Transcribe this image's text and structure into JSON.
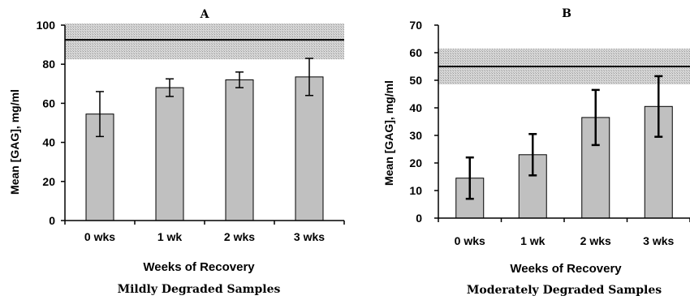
{
  "chart_data": [
    {
      "type": "bar",
      "title": "A",
      "caption": "Mildly Degraded Samples",
      "xlabel": "Weeks of Recovery",
      "ylabel": "Mean [GAG], mg/ml",
      "categories": [
        "0 wks",
        "1 wk",
        "2 wks",
        "3 wks"
      ],
      "values": [
        54.5,
        68,
        72,
        73.5
      ],
      "error": [
        11.5,
        4.5,
        4,
        9.5
      ],
      "ylim": [
        0,
        100
      ],
      "yticks": [
        0,
        20,
        40,
        60,
        80,
        100
      ],
      "reference_band": {
        "center": 92.5,
        "low": 82.5,
        "high": 102.5
      },
      "colors": {
        "bar": "#c0c0c0",
        "band": "#cfcfcf",
        "line": "#000000"
      }
    },
    {
      "type": "bar",
      "title": "B",
      "caption": "Moderately Degraded Samples",
      "xlabel": "Weeks of Recovery",
      "ylabel": "Mean [GAG], mg/ml",
      "categories": [
        "0 wks",
        "1 wk",
        "2 wks",
        "3 wks"
      ],
      "values": [
        14.5,
        23,
        36.5,
        40.5
      ],
      "error": [
        7.5,
        7.5,
        10,
        11
      ],
      "ylim": [
        0,
        70
      ],
      "yticks": [
        0,
        10,
        20,
        30,
        40,
        50,
        60,
        70
      ],
      "reference_band": {
        "center": 55,
        "low": 48.5,
        "high": 61.5
      },
      "colors": {
        "bar": "#c0c0c0",
        "band": "#cfcfcf",
        "line": "#000000"
      }
    }
  ]
}
